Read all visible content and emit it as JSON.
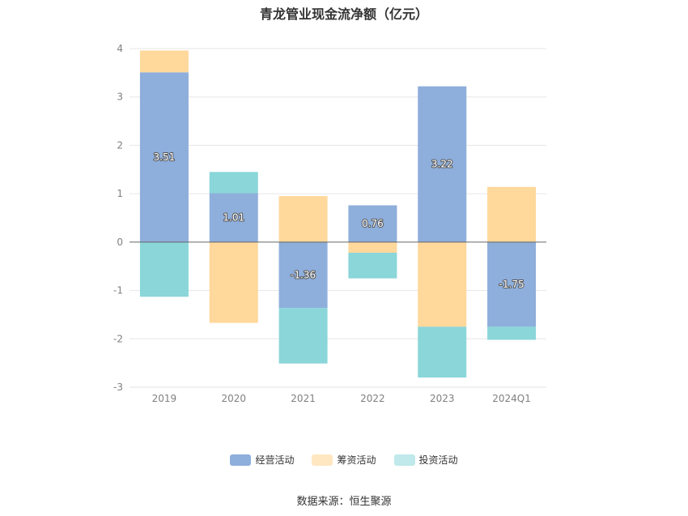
{
  "chart_data": {
    "type": "bar",
    "stacked": true,
    "title": "青龙管业现金流净额（亿元）",
    "categories": [
      "2019",
      "2020",
      "2021",
      "2022",
      "2023",
      "2024Q1"
    ],
    "series": [
      {
        "name": "经营活动",
        "color": "#8eaedb",
        "values": [
          3.51,
          1.01,
          -1.36,
          0.76,
          3.22,
          -1.75
        ]
      },
      {
        "name": "筹资活动",
        "color": "#ffd89b",
        "values": [
          0.45,
          -1.67,
          0.95,
          -0.22,
          -1.75,
          1.14
        ]
      },
      {
        "name": "投资活动",
        "color": "#8ad6d9",
        "values": [
          -1.13,
          0.44,
          -1.15,
          -0.53,
          -1.05,
          -0.27
        ]
      }
    ],
    "data_labels": [
      "3.51",
      "1.01",
      "-1.36",
      "0.76",
      "3.22",
      "-1.75"
    ],
    "yticks": [
      "4",
      "3",
      "2",
      "1",
      "0",
      "-1",
      "-2",
      "-3"
    ],
    "ylim": [
      -3,
      4
    ],
    "grid": true,
    "legend_position": "bottom",
    "legend_colors": [
      "#8eaedb",
      "#ffe7c2",
      "#bfe9ea"
    ]
  },
  "source": "数据来源：恒生聚源"
}
